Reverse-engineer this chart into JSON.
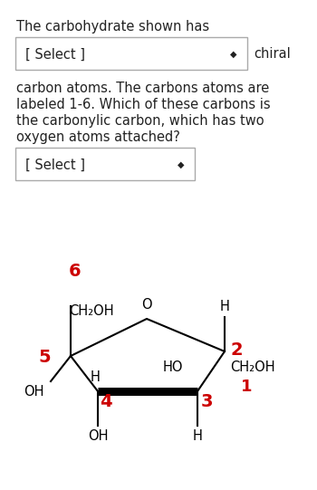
{
  "bg_color": "#ffffff",
  "text_color": "#222222",
  "red_color": "#cc0000",
  "fig_width": 3.5,
  "fig_height": 5.41,
  "dpi": 100,
  "title": "The carbohydrate shown has",
  "dropdown1": "[ Select ]",
  "chiral": "chiral",
  "body": "carbon atoms. The carbons atoms are\nlabeled 1-6. Which of these carbons is\nthe carbonylic carbon, which has two\noxygen atoms attached?",
  "dropdown2": "[ Select ]",
  "font_body": 10.5,
  "font_label": 10.5,
  "font_num": 14
}
